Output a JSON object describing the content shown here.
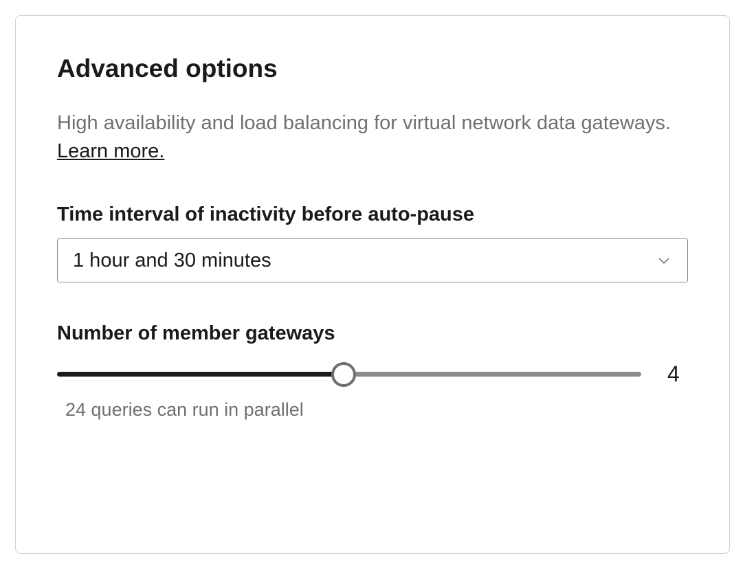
{
  "panel": {
    "title": "Advanced options",
    "description_text": "High availability and load balancing for virtual network data gateways. ",
    "learn_more_label": "Learn more."
  },
  "time_interval": {
    "label": "Time interval of inactivity before auto-pause",
    "selected_value": "1 hour and 30 minutes"
  },
  "gateways": {
    "label": "Number of member gateways",
    "value": "4",
    "helper_text": "24 queries can run in parallel",
    "slider": {
      "fill_percent": 49,
      "filled_color": "#1a1a1a",
      "empty_color": "#8a8a8a",
      "thumb_border_color": "#707070"
    }
  },
  "colors": {
    "border": "#d1d1d1",
    "text_primary": "#1a1a1a",
    "text_secondary": "#707070",
    "input_border": "#8a8a8a",
    "background": "#ffffff"
  }
}
